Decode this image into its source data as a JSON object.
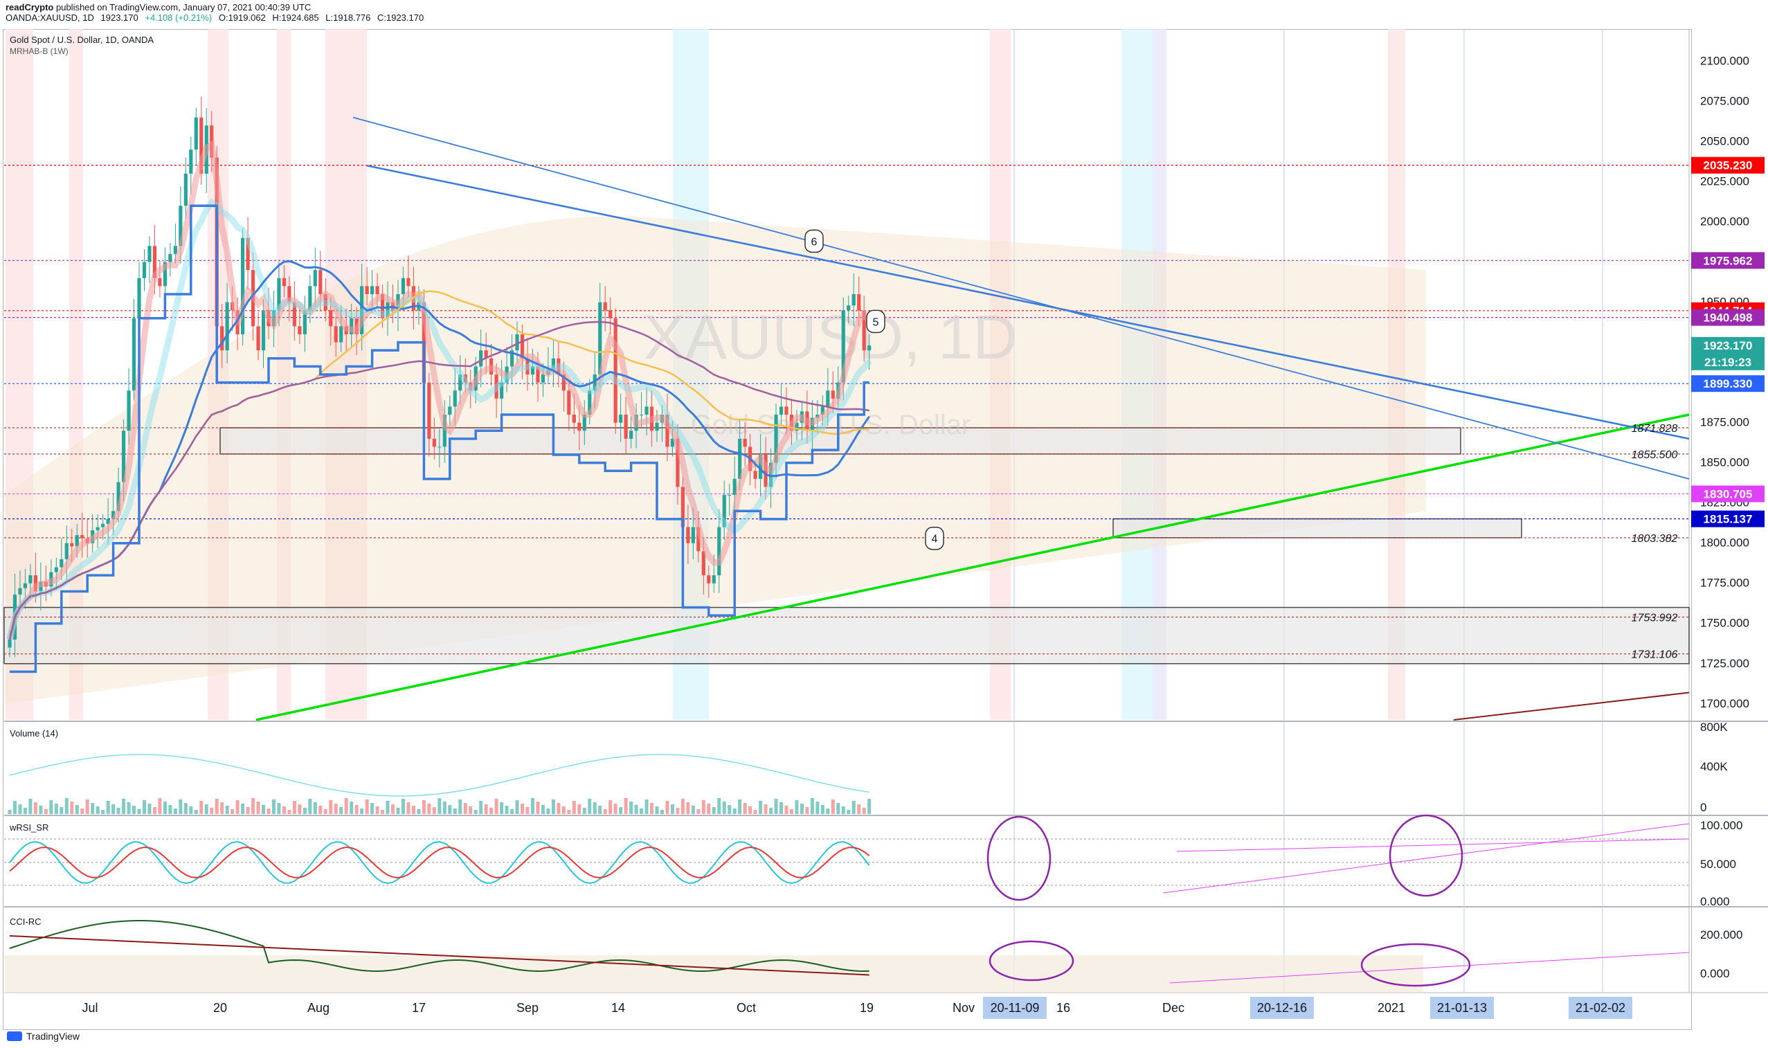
{
  "header": {
    "author": "readCrypto",
    "publish_note": "published on TradingView.com, January 07, 2021 00:40:39 UTC",
    "symbol_line": "OANDA:XAUUSD, 1D",
    "last": "1923.170",
    "change": "+4.108 (+0.21%)",
    "open": "O:1919.062",
    "high": "H:1924.685",
    "low": "L:1918.776",
    "close": "C:1923.170"
  },
  "chart_title": "Gold Spot / U.S. Dollar, 1D, OANDA",
  "indicator_label": "MRHAB-B (1W)",
  "watermark_symbol": "XAUUSD, 1D",
  "watermark_name": "Gold Spot / U.S. Dollar",
  "footer_brand": "TradingView",
  "colors": {
    "up": "#26a69a",
    "down": "#ef5350",
    "green_line": "#00e000",
    "blue_line": "#3b7dd8",
    "purple": "#8e24aa",
    "magenta": "#e040fb",
    "red_level": "#ff0000"
  },
  "chart_data": [
    {
      "type": "candlestick",
      "title": "Gold Spot / U.S. Dollar, 1D, OANDA",
      "y_range": [
        1690,
        2120
      ],
      "y_ticks": [
        "2100.000",
        "2075.000",
        "2050.000",
        "2025.000",
        "2000.000",
        "1975.000",
        "1950.000",
        "1925.000",
        "1900.000",
        "1875.000",
        "1850.000",
        "1825.000",
        "1800.000",
        "1775.000",
        "1750.000",
        "1725.000",
        "1700.000"
      ],
      "x_labels": [
        "Jul",
        "20",
        "Aug",
        "17",
        "Sep",
        "14",
        "Oct",
        "19",
        "Nov",
        "16",
        "Dec",
        "2021"
      ],
      "x_label_highlights": [
        "20-11-09",
        "20-12-16",
        "21-01-13",
        "21-02-02"
      ],
      "last_price_box": {
        "price": "1923.170",
        "countdown": "21:19:23"
      },
      "price_boxes": [
        {
          "price": 2035.23,
          "label": "2035.230",
          "color": "#ff0000"
        },
        {
          "price": 1975.962,
          "label": "1975.962",
          "color": "#9c27b0"
        },
        {
          "price": 1944.714,
          "label": "1944.714",
          "color": "#ff0000"
        },
        {
          "price": 1940.498,
          "label": "1940.498",
          "color": "#9c27b0"
        },
        {
          "price": 1899.33,
          "label": "1899.330",
          "color": "#2962ff"
        },
        {
          "price": 1830.705,
          "label": "1830.705",
          "color": "#e040fb"
        },
        {
          "price": 1815.137,
          "label": "1815.137",
          "color": "#0000cc"
        }
      ],
      "level_labels": [
        {
          "price": 1871.828,
          "label": "1871.828"
        },
        {
          "price": 1855.5,
          "label": "1855.500"
        },
        {
          "price": 1803.382,
          "label": "1803.382"
        },
        {
          "price": 1753.992,
          "label": "1753.992"
        },
        {
          "price": 1731.106,
          "label": "1731.106"
        }
      ],
      "wave_labels": [
        "6",
        "5",
        "4"
      ],
      "closes": [
        1740,
        1768,
        1772,
        1775,
        1780,
        1770,
        1776,
        1773,
        1782,
        1785,
        1790,
        1800,
        1798,
        1805,
        1803,
        1800,
        1808,
        1810,
        1812,
        1815,
        1820,
        1838,
        1870,
        1895,
        1940,
        1965,
        1975,
        1985,
        1965,
        1960,
        1975,
        1980,
        1985,
        2010,
        2030,
        2045,
        2065,
        2030,
        2060,
        2040,
        1935,
        1920,
        1950,
        1945,
        1930,
        1990,
        1970,
        1935,
        1920,
        1945,
        1935,
        1945,
        1965,
        1960,
        1950,
        1935,
        1930,
        1945,
        1960,
        1970,
        1955,
        1945,
        1935,
        1925,
        1935,
        1930,
        1940,
        1930,
        1960,
        1955,
        1960,
        1955,
        1940,
        1950,
        1945,
        1955,
        1965,
        1960,
        1945,
        1950,
        1900,
        1865,
        1860,
        1860,
        1880,
        1885,
        1895,
        1905,
        1900,
        1895,
        1910,
        1920,
        1915,
        1905,
        1890,
        1900,
        1910,
        1920,
        1930,
        1915,
        1905,
        1910,
        1900,
        1905,
        1908,
        1915,
        1905,
        1895,
        1880,
        1875,
        1870,
        1880,
        1895,
        1905,
        1950,
        1945,
        1940,
        1875,
        1880,
        1865,
        1870,
        1880,
        1880,
        1885,
        1870,
        1875,
        1880,
        1860,
        1865,
        1835,
        1810,
        1800,
        1810,
        1795,
        1780,
        1775,
        1780,
        1810,
        1830,
        1830,
        1840,
        1865,
        1860,
        1845,
        1840,
        1855,
        1835,
        1850,
        1880,
        1885,
        1880,
        1870,
        1875,
        1882,
        1870,
        1878,
        1880,
        1885,
        1895,
        1890,
        1900,
        1945,
        1948,
        1955,
        1945,
        1920,
        1923
      ]
    },
    {
      "type": "bar",
      "title": "Volume (14)",
      "y_ticks": [
        "800K",
        "400K",
        "0"
      ]
    },
    {
      "type": "line",
      "title": "wRSI_SR",
      "y_ticks": [
        "100.000",
        "50.000",
        "0.000"
      ]
    },
    {
      "type": "line",
      "title": "CCI-RC",
      "y_ticks": [
        "200.000",
        "0.000"
      ]
    }
  ]
}
